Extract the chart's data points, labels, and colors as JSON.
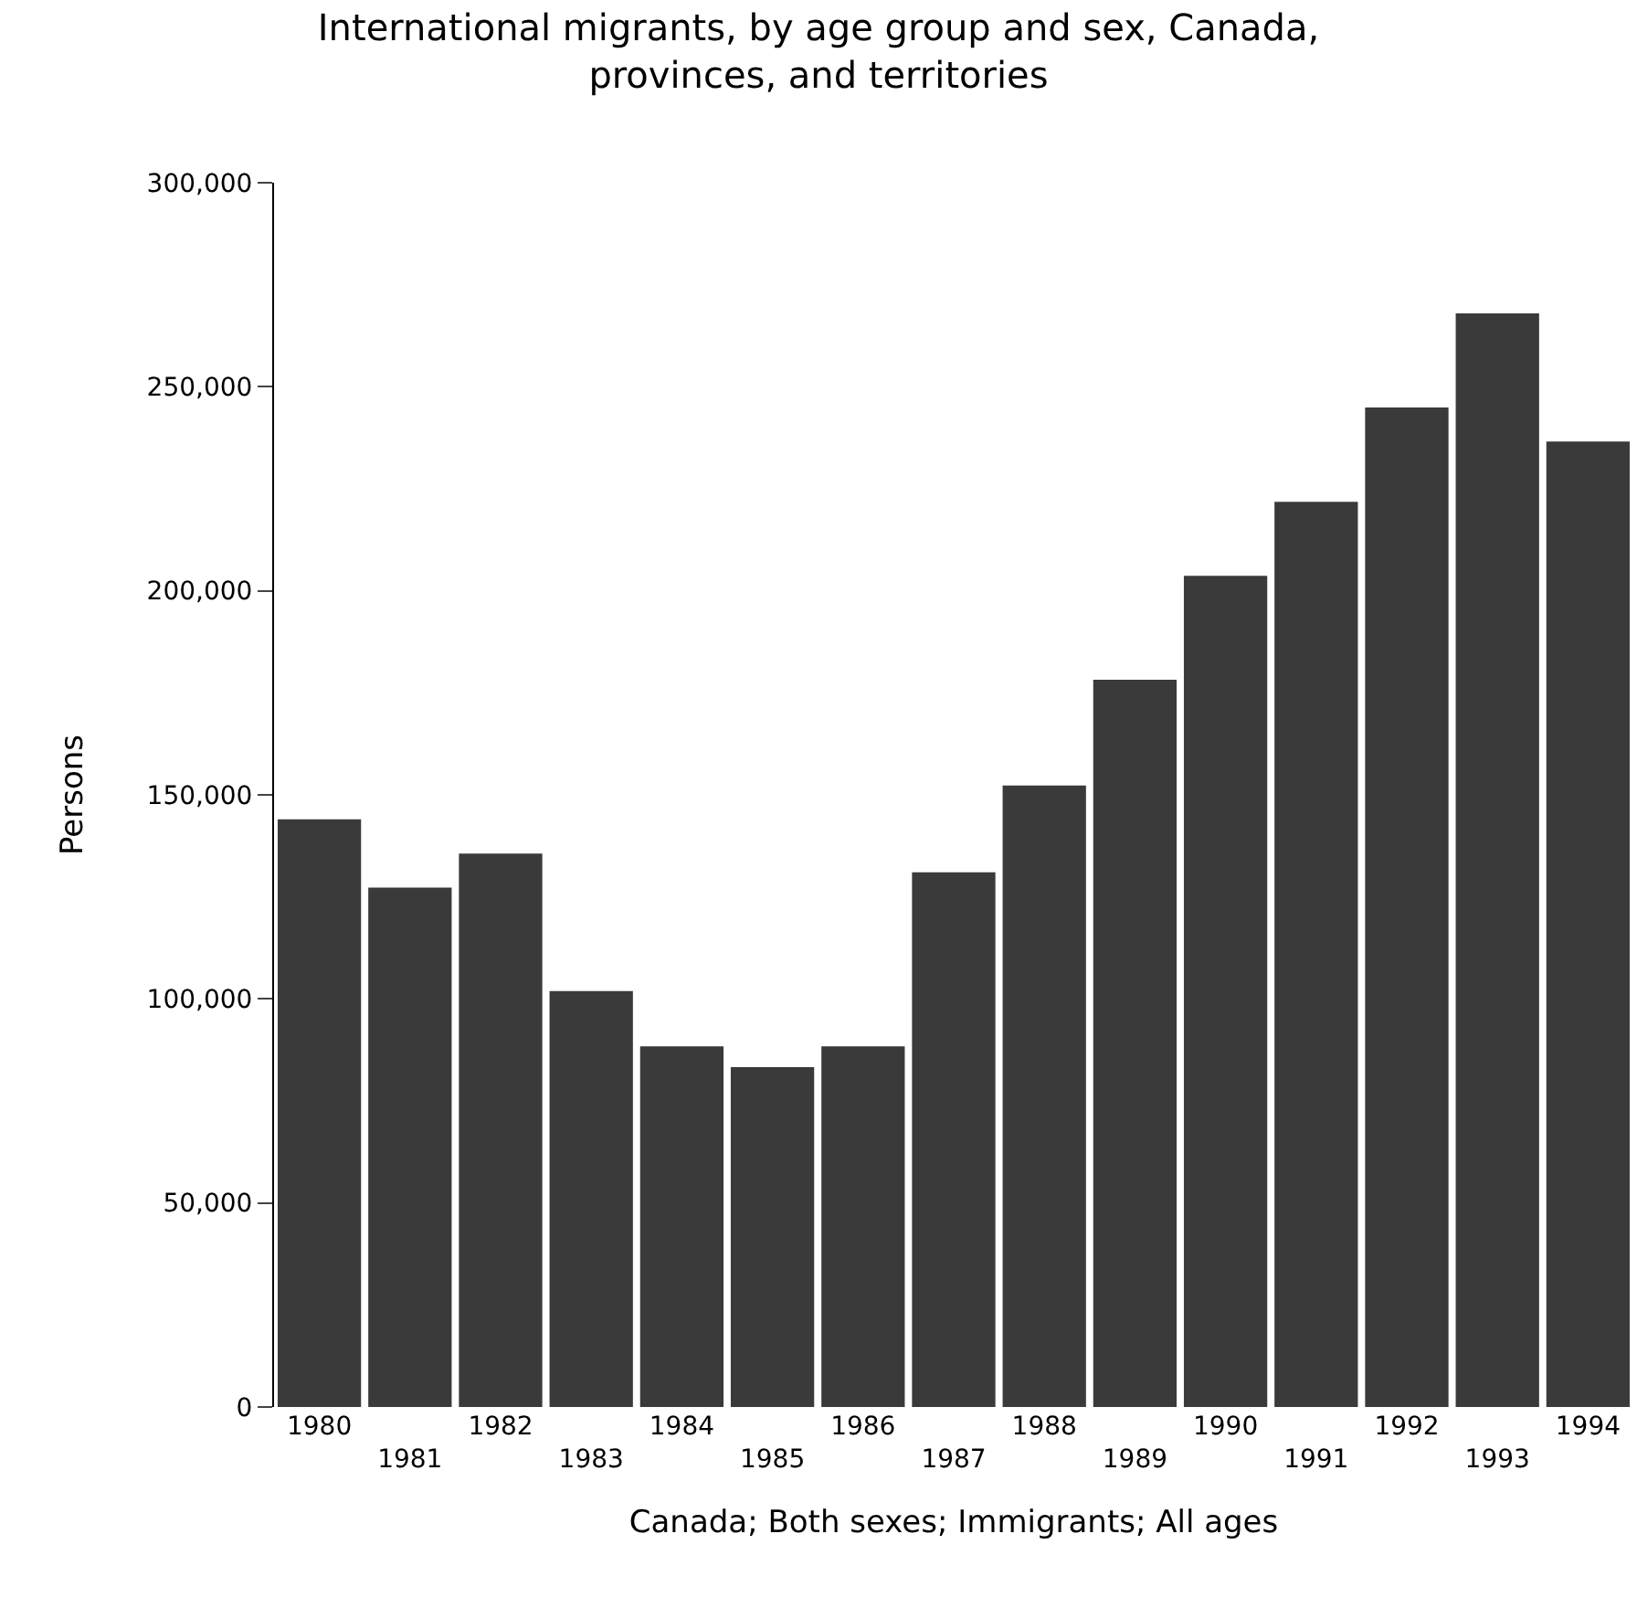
{
  "chart_data": {
    "type": "bar",
    "title": "International migrants, by age group and sex, Canada,\nprovinces, and territories",
    "xlabel": "Canada; Both sexes; Immigrants; All ages",
    "ylabel": "Persons",
    "categories": [
      "1980",
      "1981",
      "1982",
      "1983",
      "1984",
      "1985",
      "1986",
      "1987",
      "1988",
      "1989",
      "1990",
      "1991",
      "1992",
      "1993",
      "1994"
    ],
    "values": [
      144000,
      127300,
      135600,
      101900,
      88400,
      83300,
      88400,
      131000,
      152300,
      178200,
      203700,
      221800,
      244900,
      268000,
      236600
    ],
    "color": "#3a3a3a",
    "ylim": [
      0,
      300000
    ],
    "yticks": [
      {
        "value": 0,
        "label": "0"
      },
      {
        "value": 50000,
        "label": "50,000"
      },
      {
        "value": 100000,
        "label": "100,000"
      },
      {
        "value": 150000,
        "label": "150,000"
      },
      {
        "value": 200000,
        "label": "200,000"
      },
      {
        "value": 250000,
        "label": "250,000"
      },
      {
        "value": 300000,
        "label": "300,000"
      }
    ],
    "grid": false
  }
}
